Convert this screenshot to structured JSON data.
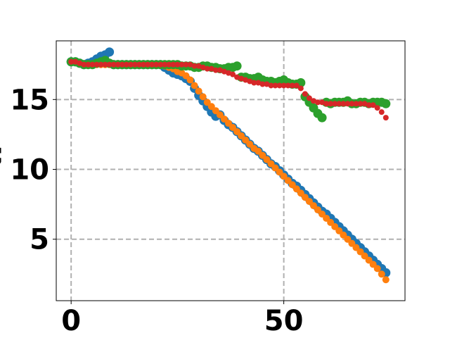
{
  "chart_data": {
    "type": "scatter",
    "title": "",
    "xlabel": "",
    "ylabel": "",
    "xlim": [
      -3.5,
      78.5
    ],
    "ylim": [
      0.6,
      19.2
    ],
    "xticks": [
      0,
      50
    ],
    "xtick_labels": [
      "0",
      "50"
    ],
    "yticks": [
      5,
      10,
      15
    ],
    "ytick_labels": [
      "5",
      "10",
      "15"
    ],
    "grid": true,
    "grid_style": "dashed",
    "colors": {
      "blue": "#1f77b4",
      "orange": "#ff7f0e",
      "green": "#2ca02c",
      "red": "#d62728",
      "grid": "#b0b0b0"
    },
    "series": [
      {
        "color": "#1f77b4",
        "marker_size": "large",
        "x": [
          0,
          1,
          2,
          3,
          4,
          5,
          6,
          7,
          8,
          9,
          10,
          11,
          12,
          13,
          14,
          15,
          16,
          17,
          18,
          19,
          20,
          21,
          22,
          23,
          24,
          25,
          26,
          27,
          28,
          29,
          30,
          31,
          32,
          33,
          34,
          35,
          36,
          37,
          38,
          39,
          40,
          41,
          42,
          43,
          44,
          45,
          46,
          47,
          48,
          49,
          50,
          51,
          52,
          53,
          54,
          55,
          56,
          57,
          58,
          59,
          60,
          61,
          62,
          63,
          64,
          65,
          66,
          67,
          68,
          69,
          70,
          71,
          72,
          73,
          74
        ],
        "y": [
          17.7,
          17.7,
          17.6,
          17.5,
          17.6,
          17.7,
          17.9,
          18.1,
          18.2,
          18.4,
          17.5,
          17.5,
          17.5,
          17.5,
          17.5,
          17.5,
          17.5,
          17.5,
          17.5,
          17.5,
          17.5,
          17.5,
          17.3,
          17.1,
          16.9,
          16.8,
          16.7,
          16.5,
          16.3,
          15.8,
          15.3,
          14.9,
          14.5,
          14.1,
          13.8,
          13.9,
          13.5,
          13.2,
          13.0,
          12.7,
          12.4,
          12.1,
          11.8,
          11.5,
          11.3,
          11.0,
          10.7,
          10.4,
          10.2,
          9.9,
          9.6,
          9.3,
          9.0,
          8.8,
          8.5,
          8.2,
          7.9,
          7.6,
          7.3,
          7.0,
          6.8,
          6.5,
          6.2,
          5.9,
          5.6,
          5.3,
          5.0,
          4.7,
          4.4,
          4.1,
          3.8,
          3.5,
          3.2,
          2.9,
          2.6
        ]
      },
      {
        "color": "#ff7f0e",
        "marker_size": "medium",
        "x": [
          0,
          1,
          2,
          3,
          4,
          5,
          6,
          7,
          8,
          9,
          10,
          11,
          12,
          13,
          14,
          15,
          16,
          17,
          18,
          19,
          20,
          21,
          22,
          23,
          24,
          25,
          26,
          27,
          28,
          29,
          30,
          31,
          32,
          33,
          34,
          35,
          36,
          37,
          38,
          39,
          40,
          41,
          42,
          43,
          44,
          45,
          46,
          47,
          48,
          49,
          50,
          51,
          52,
          53,
          54,
          55,
          56,
          57,
          58,
          59,
          60,
          61,
          62,
          63,
          64,
          65,
          66,
          67,
          68,
          69,
          70,
          71,
          72,
          73,
          74
        ],
        "y": [
          17.7,
          17.7,
          17.6,
          17.5,
          17.5,
          17.5,
          17.5,
          17.5,
          17.5,
          17.5,
          17.5,
          17.5,
          17.5,
          17.5,
          17.5,
          17.5,
          17.5,
          17.5,
          17.5,
          17.5,
          17.5,
          17.5,
          17.4,
          17.3,
          17.2,
          17.0,
          16.9,
          16.7,
          16.4,
          16.0,
          15.6,
          15.2,
          14.8,
          14.5,
          14.2,
          13.9,
          13.6,
          13.3,
          13.0,
          12.7,
          12.4,
          12.1,
          11.8,
          11.5,
          11.3,
          11.0,
          10.7,
          10.4,
          10.1,
          9.8,
          9.5,
          9.2,
          8.9,
          8.6,
          8.3,
          8.0,
          7.7,
          7.4,
          7.1,
          6.8,
          6.5,
          6.2,
          5.9,
          5.6,
          5.3,
          5.0,
          4.7,
          4.4,
          4.1,
          3.8,
          3.5,
          3.2,
          2.9,
          2.5,
          2.1
        ]
      },
      {
        "color": "#2ca02c",
        "marker_size": "large",
        "x": [
          0,
          1,
          2,
          3,
          4,
          5,
          6,
          7,
          8,
          9,
          10,
          11,
          12,
          13,
          14,
          15,
          16,
          17,
          18,
          19,
          20,
          21,
          22,
          23,
          24,
          25,
          26,
          27,
          28,
          29,
          30,
          31,
          32,
          33,
          34,
          35,
          36,
          37,
          38,
          39,
          40,
          41,
          42,
          43,
          44,
          45,
          46,
          47,
          48,
          49,
          50,
          51,
          52,
          53,
          54,
          55,
          56,
          57,
          58,
          59,
          60,
          61,
          62,
          63,
          64,
          65,
          66,
          67,
          68,
          69,
          70,
          71,
          72,
          73,
          74
        ],
        "y": [
          17.7,
          17.7,
          17.6,
          17.5,
          17.5,
          17.5,
          17.6,
          17.7,
          17.8,
          17.6,
          17.5,
          17.5,
          17.5,
          17.5,
          17.5,
          17.5,
          17.5,
          17.5,
          17.5,
          17.5,
          17.5,
          17.5,
          17.5,
          17.5,
          17.5,
          17.5,
          17.4,
          17.4,
          17.4,
          17.3,
          17.3,
          17.4,
          17.4,
          17.3,
          17.3,
          17.2,
          17.2,
          17.3,
          17.3,
          17.4,
          16.6,
          16.6,
          16.5,
          16.5,
          16.6,
          16.4,
          16.3,
          16.3,
          16.2,
          16.3,
          16.4,
          16.2,
          16.1,
          16.1,
          16.2,
          15.2,
          14.8,
          14.4,
          14.0,
          13.7,
          14.8,
          14.7,
          14.8,
          14.8,
          14.8,
          14.9,
          14.7,
          14.7,
          14.8,
          14.8,
          14.7,
          14.8,
          14.8,
          14.8,
          14.7
        ]
      },
      {
        "color": "#d62728",
        "marker_size": "small",
        "x": [
          0,
          1,
          2,
          3,
          4,
          5,
          6,
          7,
          8,
          9,
          10,
          11,
          12,
          13,
          14,
          15,
          16,
          17,
          18,
          19,
          20,
          21,
          22,
          23,
          24,
          25,
          26,
          27,
          28,
          29,
          30,
          31,
          32,
          33,
          34,
          35,
          36,
          37,
          38,
          39,
          40,
          41,
          42,
          43,
          44,
          45,
          46,
          47,
          48,
          49,
          50,
          51,
          52,
          53,
          54,
          55,
          56,
          57,
          58,
          59,
          60,
          61,
          62,
          63,
          64,
          65,
          66,
          67,
          68,
          69,
          70,
          71,
          72,
          73,
          74
        ],
        "y": [
          17.7,
          17.7,
          17.6,
          17.5,
          17.5,
          17.5,
          17.5,
          17.5,
          17.5,
          17.5,
          17.5,
          17.5,
          17.5,
          17.5,
          17.5,
          17.5,
          17.5,
          17.5,
          17.5,
          17.5,
          17.5,
          17.5,
          17.5,
          17.5,
          17.5,
          17.5,
          17.5,
          17.5,
          17.5,
          17.4,
          17.4,
          17.3,
          17.2,
          17.2,
          17.1,
          17.1,
          17.0,
          16.9,
          16.8,
          16.6,
          16.5,
          16.4,
          16.3,
          16.2,
          16.2,
          16.1,
          16.1,
          16.0,
          16.0,
          16.0,
          16.0,
          16.0,
          16.0,
          16.0,
          15.8,
          15.4,
          15.1,
          14.9,
          14.8,
          14.8,
          14.7,
          14.7,
          14.7,
          14.7,
          14.7,
          14.7,
          14.7,
          14.7,
          14.7,
          14.7,
          14.6,
          14.6,
          14.4,
          14.1,
          13.7
        ]
      }
    ]
  },
  "ylabel_fragments": [
    ":",
    ";"
  ]
}
